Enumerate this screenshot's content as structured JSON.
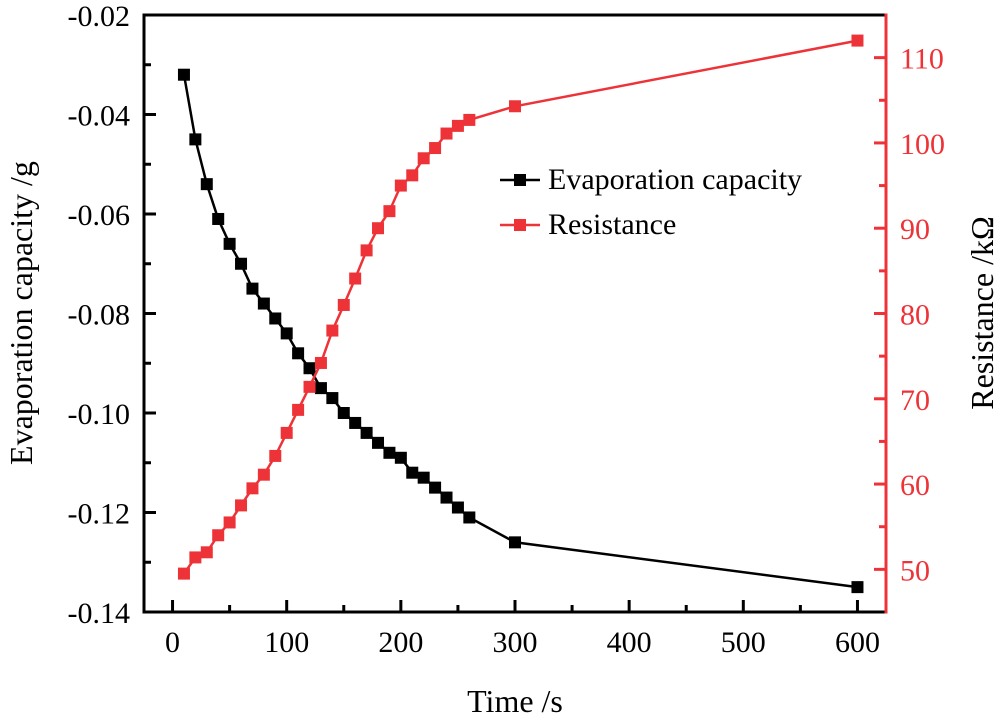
{
  "chart_data": {
    "type": "line",
    "title": "",
    "xlabel": "Time /s",
    "ylabel_left": "Evaporation capacity /g",
    "ylabel_right": "Resistance /kΩ",
    "xlim": [
      -25,
      625
    ],
    "ylim_left": [
      -0.14,
      -0.02
    ],
    "ylim_right": [
      45,
      115
    ],
    "x_ticks": [
      0,
      100,
      200,
      300,
      400,
      500,
      600
    ],
    "x_tick_labels": [
      "0",
      "100",
      "200",
      "300",
      "400",
      "500",
      "600"
    ],
    "y_left_ticks": [
      -0.02,
      -0.04,
      -0.06,
      -0.08,
      -0.1,
      -0.12,
      -0.14
    ],
    "y_left_tick_labels": [
      "-0.02",
      "-0.04",
      "-0.06",
      "-0.08",
      "-0.10",
      "-0.12",
      "-0.14"
    ],
    "y_right_ticks": [
      50,
      60,
      70,
      80,
      90,
      100,
      110
    ],
    "y_right_tick_labels": [
      "50",
      "60",
      "70",
      "80",
      "90",
      "100",
      "110"
    ],
    "grid": false,
    "legend_position": "top-right",
    "x": [
      10,
      20,
      30,
      40,
      50,
      60,
      70,
      80,
      90,
      100,
      110,
      120,
      130,
      140,
      150,
      160,
      170,
      180,
      190,
      200,
      210,
      220,
      230,
      240,
      250,
      260,
      300,
      600
    ],
    "series": [
      {
        "name": "Evaporation capacity",
        "axis": "left",
        "color": "#000000",
        "values": [
          -0.032,
          -0.045,
          -0.054,
          -0.061,
          -0.066,
          -0.07,
          -0.075,
          -0.078,
          -0.081,
          -0.084,
          -0.088,
          -0.091,
          -0.095,
          -0.097,
          -0.1,
          -0.102,
          -0.104,
          -0.106,
          -0.108,
          -0.109,
          -0.112,
          -0.113,
          -0.115,
          -0.117,
          -0.119,
          -0.121,
          -0.126,
          -0.135
        ]
      },
      {
        "name": "Resistance",
        "axis": "right",
        "color": "#ee3338",
        "values": [
          49.5,
          51.4,
          52.0,
          54.0,
          55.5,
          57.5,
          59.5,
          61.1,
          63.3,
          66.0,
          68.7,
          71.4,
          74.2,
          78.0,
          81.0,
          84.1,
          87.4,
          90.0,
          92.0,
          95.0,
          96.2,
          98.2,
          99.4,
          101.1,
          102.0,
          102.7,
          104.3,
          112.0
        ]
      }
    ]
  }
}
